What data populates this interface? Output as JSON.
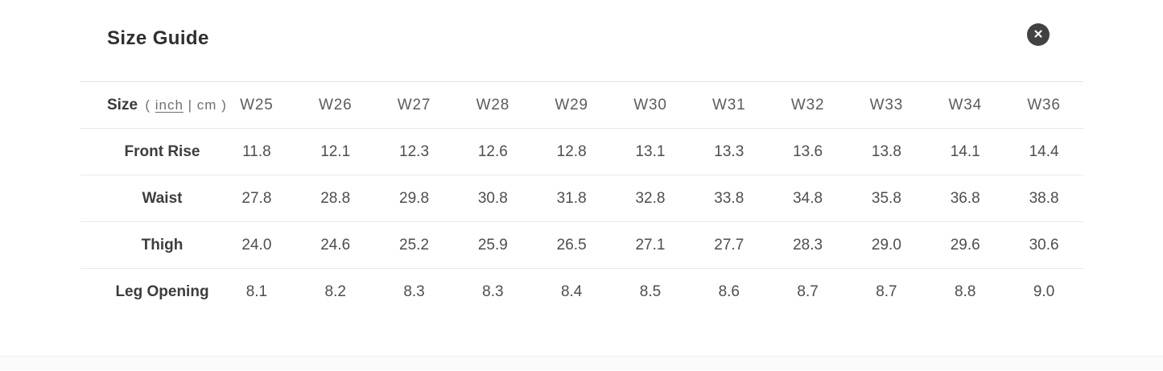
{
  "modal": {
    "title": "Size Guide",
    "close_glyph": "✕"
  },
  "colors": {
    "title_text": "#2f2f2f",
    "close_button_bg": "#424242",
    "close_button_glyph": "#ffffff",
    "row_label_text": "#3d3d3d",
    "value_text": "#4e4e4e",
    "column_header_text": "#5c5c5c",
    "unit_text": "#6f6f6f",
    "divider": "#e7e7e7",
    "modal_bg": "#ffffff"
  },
  "table": {
    "size_label": "Size",
    "unit_open_paren": "(",
    "unit_inch": "inch",
    "unit_separator": "|",
    "unit_cm": "cm",
    "unit_close_paren": ")",
    "active_unit": "inch",
    "columns": [
      "W25",
      "W26",
      "W27",
      "W28",
      "W29",
      "W30",
      "W31",
      "W32",
      "W33",
      "W34",
      "W36"
    ],
    "rows": [
      {
        "label": "Front Rise",
        "values": [
          "11.8",
          "12.1",
          "12.3",
          "12.6",
          "12.8",
          "13.1",
          "13.3",
          "13.6",
          "13.8",
          "14.1",
          "14.4"
        ]
      },
      {
        "label": "Waist",
        "values": [
          "27.8",
          "28.8",
          "29.8",
          "30.8",
          "31.8",
          "32.8",
          "33.8",
          "34.8",
          "35.8",
          "36.8",
          "38.8"
        ]
      },
      {
        "label": "Thigh",
        "values": [
          "24.0",
          "24.6",
          "25.2",
          "25.9",
          "26.5",
          "27.1",
          "27.7",
          "28.3",
          "29.0",
          "29.6",
          "30.6"
        ]
      },
      {
        "label": "Leg Opening",
        "values": [
          "8.1",
          "8.2",
          "8.3",
          "8.3",
          "8.4",
          "8.5",
          "8.6",
          "8.7",
          "8.7",
          "8.8",
          "9.0"
        ]
      }
    ]
  }
}
